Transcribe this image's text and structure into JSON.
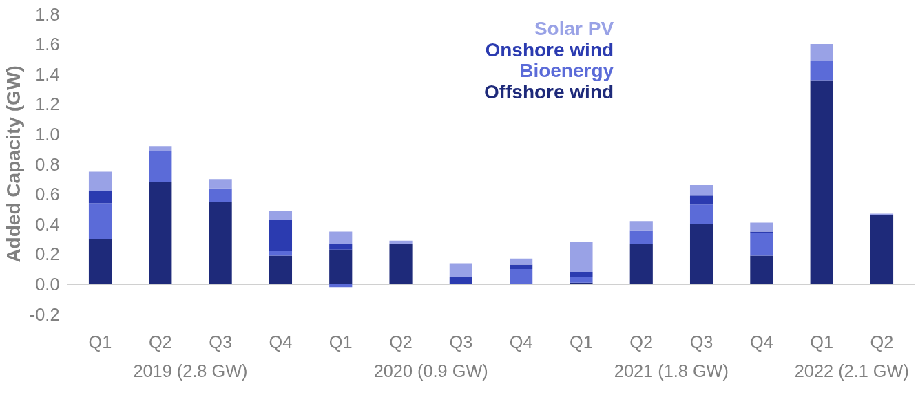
{
  "chart_data": {
    "type": "bar",
    "stacked": true,
    "ylabel": "Added Capacity (GW)",
    "categories": [
      "Q1",
      "Q2",
      "Q3",
      "Q4",
      "Q1",
      "Q2",
      "Q3",
      "Q4",
      "Q1",
      "Q2",
      "Q3",
      "Q4",
      "Q1",
      "Q2"
    ],
    "annotations": [
      "2019 (2.8 GW)",
      "2020 (0.9 GW)",
      "2021 (1.8 GW)",
      "2022 (2.1 GW)"
    ],
    "series": [
      {
        "name": "Offshore wind",
        "color": "#1e2a7a",
        "values": [
          0.3,
          0.68,
          0.55,
          0.19,
          0.23,
          0.27,
          0,
          0,
          0.01,
          0.27,
          0.4,
          0.19,
          1.36,
          0.46
        ]
      },
      {
        "name": "Bioenergy",
        "color": "#5b6bd8",
        "values": [
          0.24,
          0.21,
          0.09,
          0.03,
          -0.02,
          0,
          0,
          0.1,
          0.04,
          0.09,
          0.13,
          0.15,
          0.13,
          0
        ]
      },
      {
        "name": "Onshore wind",
        "color": "#2b3bb0",
        "values": [
          0.08,
          0,
          0,
          0.21,
          0.04,
          0,
          0.05,
          0.03,
          0.03,
          0,
          0.06,
          0.01,
          0,
          0
        ]
      },
      {
        "name": "Solar PV",
        "color": "#99a2e6",
        "values": [
          0.13,
          0.03,
          0.06,
          0.06,
          0.08,
          0.02,
          0.09,
          0.04,
          0.2,
          0.06,
          0.07,
          0.06,
          0.11,
          0.01
        ]
      }
    ],
    "ylim": [
      -0.2,
      1.8
    ],
    "yticks": [
      {
        "value": -0.2,
        "label": "-0.2"
      },
      {
        "value": 0,
        "label": "0.0"
      },
      {
        "value": 0.2,
        "label": "0.2"
      },
      {
        "value": 0.4,
        "label": "0.4"
      },
      {
        "value": 0.6,
        "label": "0.6"
      },
      {
        "value": 0.8,
        "label": "0.8"
      },
      {
        "value": 1.0,
        "label": "1.0"
      },
      {
        "value": 1.2,
        "label": "1.2"
      },
      {
        "value": 1.4,
        "label": "1.4"
      },
      {
        "value": 1.6,
        "label": "1.6"
      },
      {
        "value": 1.8,
        "label": "1.8"
      }
    ],
    "ref_lines": [
      {
        "axis": "y",
        "value": 0,
        "color": "#d0d0d0"
      }
    ],
    "legend": "top",
    "grid": false
  }
}
